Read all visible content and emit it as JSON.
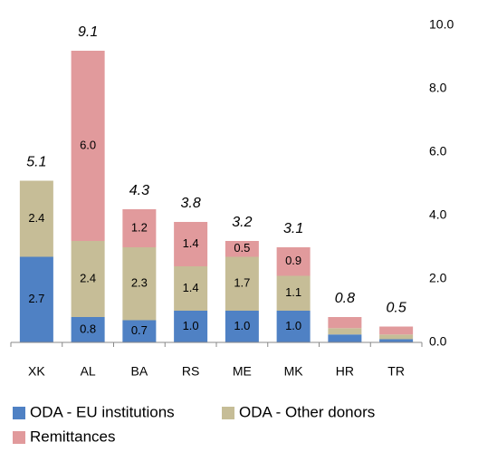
{
  "chart_data": {
    "type": "stacked_bar",
    "categories": [
      "XK",
      "AL",
      "BA",
      "RS",
      "ME",
      "MK",
      "HR",
      "TR"
    ],
    "series": [
      {
        "name": "ODA - EU institutions",
        "color": "#4f81c4",
        "values": [
          2.7,
          0.8,
          0.7,
          1.0,
          1.0,
          1.0,
          0.25,
          0.1
        ],
        "value_labels": [
          "2.7",
          "0.8",
          "0.7",
          "1.0",
          "1.0",
          "1.0",
          null,
          null
        ]
      },
      {
        "name": "ODA - Other donors",
        "color": "#c6bd97",
        "values": [
          2.4,
          2.4,
          2.3,
          1.4,
          1.7,
          1.1,
          0.2,
          0.15
        ],
        "value_labels": [
          "2.4",
          "2.4",
          "2.3",
          "1.4",
          "1.7",
          "1.1",
          null,
          null
        ]
      },
      {
        "name": "Remittances",
        "color": "#e19a9c",
        "values": [
          0,
          6.0,
          1.2,
          1.4,
          0.5,
          0.9,
          0.35,
          0.25
        ],
        "value_labels": [
          null,
          "6.0",
          "1.2",
          "1.4",
          "0.5",
          "0.9",
          null,
          null
        ]
      }
    ],
    "totals": [
      5.1,
      9.1,
      4.3,
      3.8,
      3.2,
      3.1,
      0.8,
      0.5
    ],
    "ylim": [
      0,
      10
    ],
    "yticks": [
      {
        "value": 0,
        "label": "0.0"
      },
      {
        "value": 2,
        "label": "2.0"
      },
      {
        "value": 4,
        "label": "4.0"
      },
      {
        "value": 6,
        "label": "6.0"
      },
      {
        "value": 8,
        "label": "8.0"
      },
      {
        "value": 10,
        "label": "10.0"
      }
    ],
    "legend": "bottom"
  }
}
